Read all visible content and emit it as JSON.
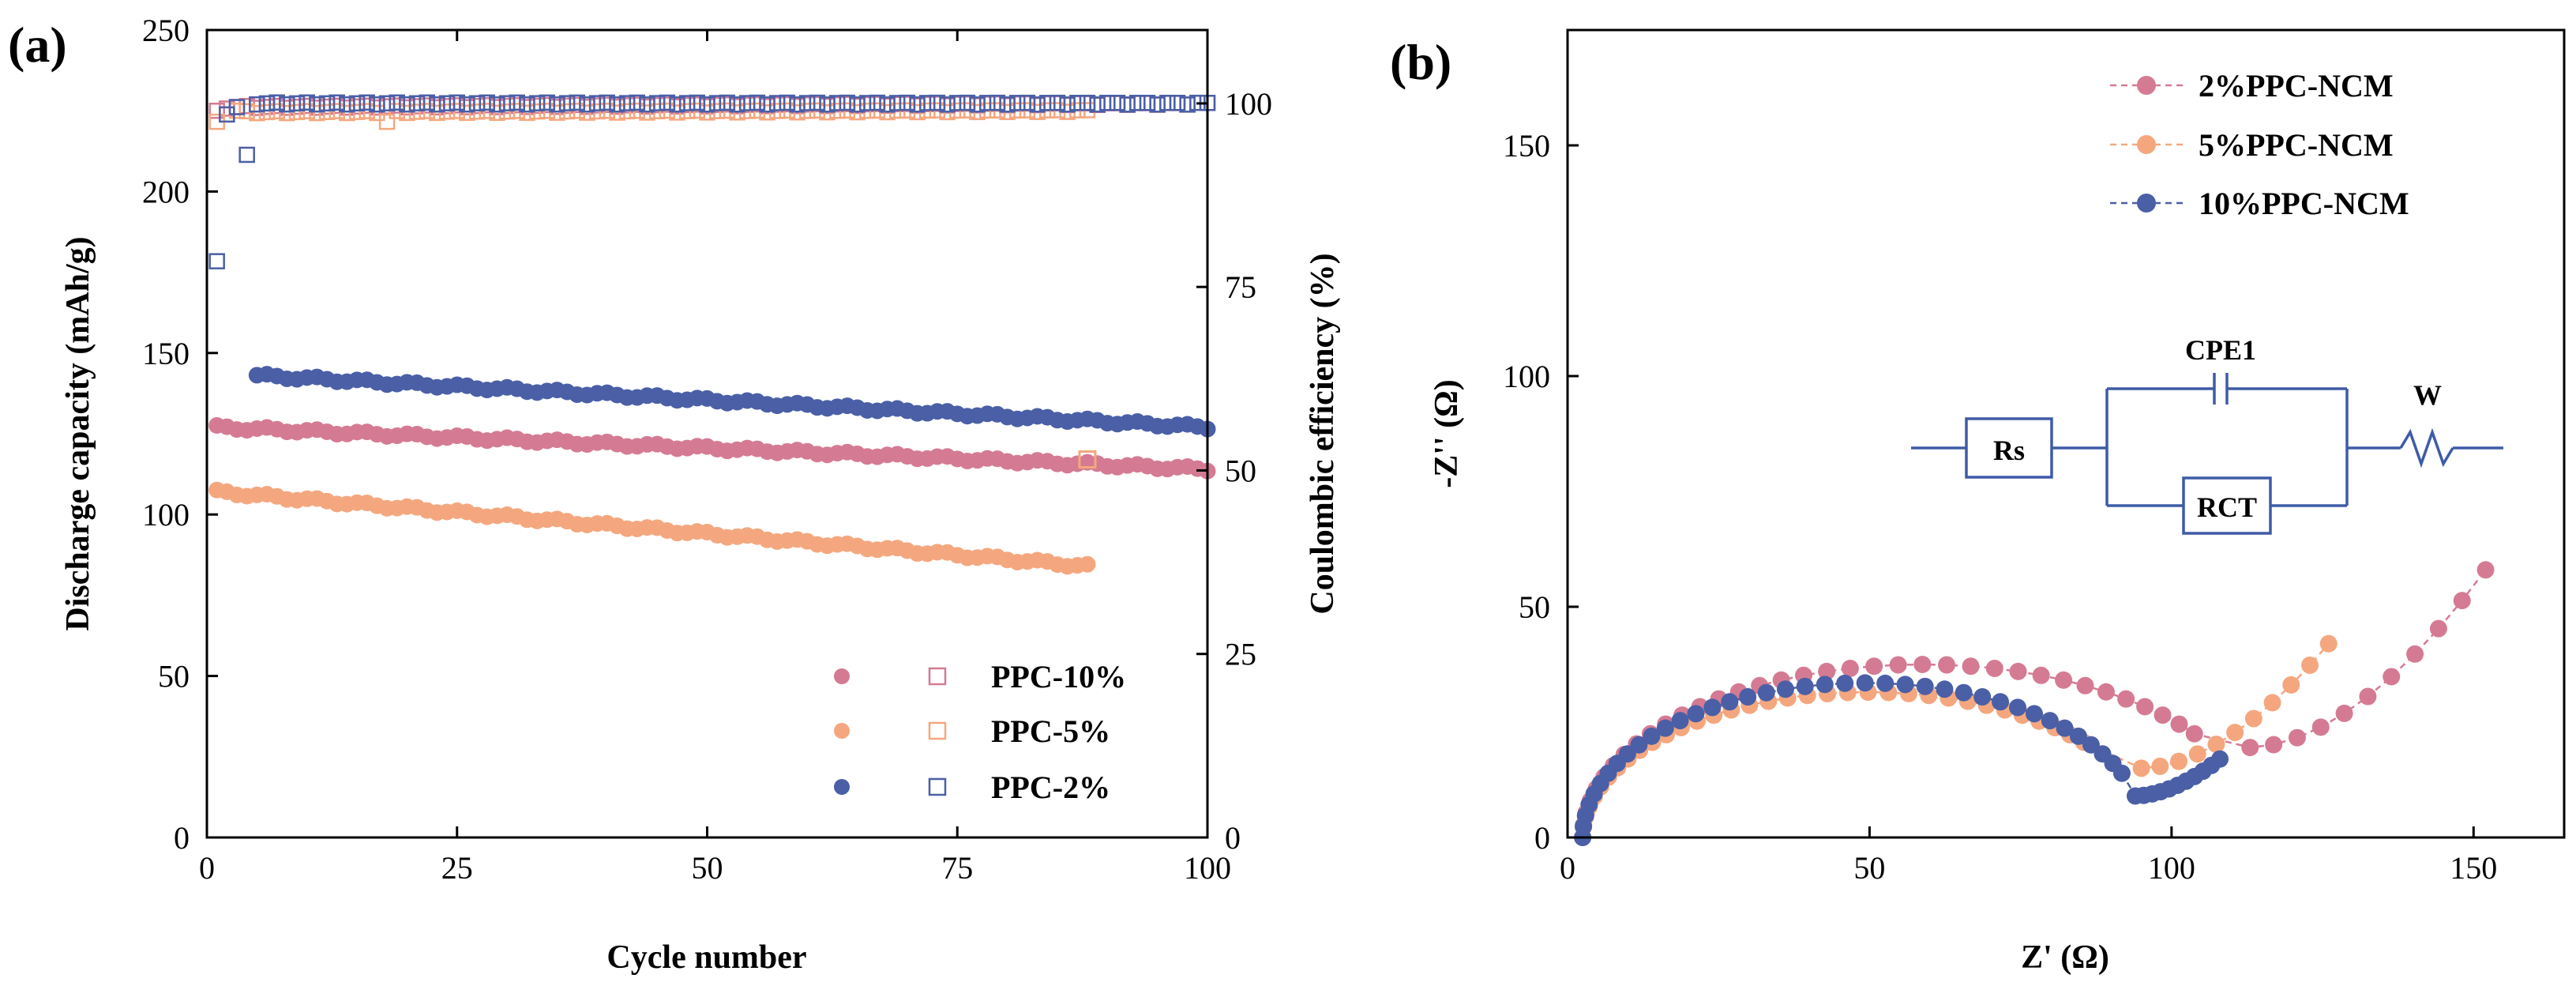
{
  "chart_data": [
    {
      "panel": "(a)",
      "type": "scatter",
      "xlabel": "Cycle number",
      "ylabel": "Discharge capacity (mAh/g)",
      "y2label": "Coulombic efficiency (%)",
      "xlim": [
        0,
        100
      ],
      "ylim": [
        0,
        250
      ],
      "y2lim": [
        0,
        110
      ],
      "xticks": [
        "0",
        "25",
        "50",
        "75",
        "100"
      ],
      "yticks": [
        "0",
        "50",
        "100",
        "150",
        "200",
        "250"
      ],
      "y2ticks": [
        "0",
        "25",
        "50",
        "75",
        "100"
      ],
      "legend_position": "bottom-right",
      "series": [
        {
          "name": "PPC-10%",
          "color": "#D47B93",
          "capacity": {
            "start": 1,
            "end": 100,
            "y0": 127,
            "y1": 114
          },
          "efficiency": {
            "start": 1,
            "end": 100,
            "y0": 99.5,
            "y1": 100,
            "early": [
              99.0,
              99.3
            ]
          }
        },
        {
          "name": "PPC-5%",
          "color": "#F4A77F",
          "capacity": {
            "start": 1,
            "end": 88,
            "y0": 107,
            "y1": 84
          },
          "efficiency": {
            "start": 1,
            "end": 88,
            "y0": 98.8,
            "y1": 99.0,
            "early": [
              97.5,
              98.5,
              99.0
            ],
            "dip_cycle": 18,
            "dip_value": 97.5
          }
        },
        {
          "name": "PPC-2%",
          "color": "#4A5FA6",
          "capacity": {
            "start": 5,
            "end": 100,
            "y0": 143,
            "y1": 127
          },
          "efficiency": {
            "start": 1,
            "end": 100,
            "y0": 100,
            "y1": 100,
            "early": [
              78.5,
              98.5,
              99.5,
              93.0
            ]
          }
        }
      ],
      "outlier_points": [
        {
          "x": 88,
          "y2": 51.5,
          "series": "PPC-5%"
        }
      ]
    },
    {
      "panel": "(b)",
      "type": "scatter",
      "xlabel": "Z' (Ω)",
      "ylabel": "-Z'' (Ω)",
      "xlim": [
        0,
        165
      ],
      "ylim": [
        0,
        175
      ],
      "xticks": [
        "0",
        "50",
        "100",
        "150"
      ],
      "yticks": [
        "0",
        "50",
        "100",
        "150"
      ],
      "legend_position": "top-right",
      "series": [
        {
          "name": "2%PPC-NCM",
          "color": "#D47B93",
          "arc": {
            "r0": 2.5,
            "rmax": 115,
            "height": 37.5
          },
          "tail": {
            "end_x": 152,
            "end_y": 58
          }
        },
        {
          "name": "5%PPC-NCM",
          "color": "#F4A77F",
          "arc": {
            "r0": 2.5,
            "rmax": 97,
            "height": 31.5
          },
          "tail": {
            "end_x": 126,
            "end_y": 42
          }
        },
        {
          "name": "10%PPC-NCM",
          "color": "#4A5FA6",
          "arc": {
            "r0": 2.5,
            "rmax": 96,
            "height": 33.5
          },
          "tail": {
            "end_x": 108,
            "end_y": 17
          }
        }
      ],
      "circuit": {
        "labels": [
          "Rs",
          "CPE1",
          "RCT",
          "W"
        ]
      }
    }
  ]
}
